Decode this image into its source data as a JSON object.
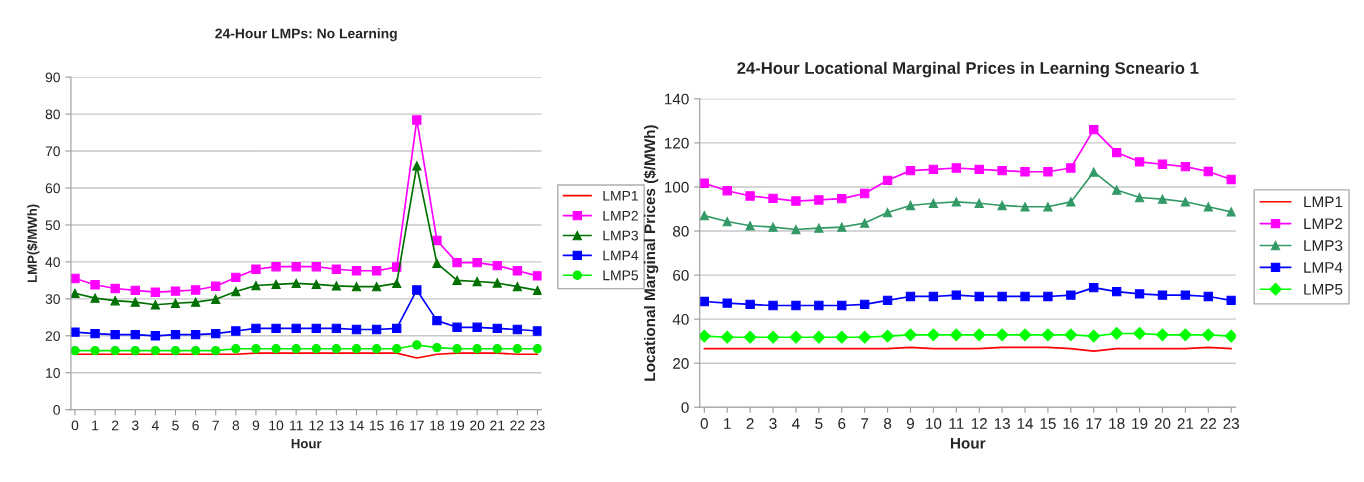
{
  "chart_data": [
    {
      "type": "line",
      "title": "24-Hour LMPs: No Learning",
      "xlabel": "Hour",
      "ylabel": "LMP($/MWh)",
      "categories": [
        "0",
        "1",
        "2",
        "3",
        "4",
        "5",
        "6",
        "7",
        "8",
        "9",
        "10",
        "11",
        "12",
        "13",
        "14",
        "15",
        "16",
        "17",
        "18",
        "19",
        "20",
        "21",
        "22",
        "23"
      ],
      "ylim": [
        0,
        90
      ],
      "yticks": [
        0,
        10,
        20,
        30,
        40,
        50,
        60,
        70,
        80,
        90
      ],
      "grid": "y",
      "legend": "right",
      "series": [
        {
          "name": "LMP1",
          "color": "#ff0000",
          "marker": "none",
          "values": [
            15,
            15,
            15,
            15,
            15,
            15,
            15,
            15,
            15,
            15.3,
            15.3,
            15.3,
            15.3,
            15.3,
            15.3,
            15.3,
            15.3,
            14,
            15,
            15.3,
            15.3,
            15.3,
            15,
            15
          ]
        },
        {
          "name": "LMP2",
          "color": "#ff00ff",
          "marker": "square",
          "values": [
            35.5,
            33.8,
            32.8,
            32.3,
            31.8,
            32.1,
            32.4,
            33.4,
            35.8,
            38,
            38.7,
            38.7,
            38.7,
            38,
            37.6,
            37.6,
            38.6,
            78.4,
            45.8,
            39.8,
            39.8,
            39,
            37.6,
            36.2
          ]
        },
        {
          "name": "LMP3",
          "color": "#007000",
          "marker": "triangle",
          "values": [
            31.5,
            30.2,
            29.5,
            29.1,
            28.4,
            28.8,
            29.1,
            29.9,
            32,
            33.6,
            33.9,
            34.2,
            33.9,
            33.5,
            33.3,
            33.3,
            34.2,
            66,
            39.6,
            35,
            34.7,
            34.3,
            33.3,
            32.3
          ]
        },
        {
          "name": "LMP4",
          "color": "#0000ff",
          "marker": "square",
          "values": [
            21,
            20.6,
            20.3,
            20.3,
            20,
            20.3,
            20.3,
            20.6,
            21.3,
            22,
            22,
            22,
            22,
            22,
            21.7,
            21.7,
            22,
            32.4,
            24.1,
            22.3,
            22.3,
            22,
            21.7,
            21.3
          ]
        },
        {
          "name": "LMP5",
          "color": "#00ee00",
          "marker": "circle",
          "values": [
            16,
            16,
            16,
            16,
            16,
            16,
            16,
            16,
            16.5,
            16.5,
            16.5,
            16.5,
            16.5,
            16.5,
            16.5,
            16.5,
            16.5,
            17.5,
            16.8,
            16.5,
            16.5,
            16.5,
            16.5,
            16.5
          ]
        }
      ]
    },
    {
      "type": "line",
      "title": "24-Hour Locational Marginal Prices in Learning Scneario 1",
      "xlabel": "Hour",
      "ylabel": "Locational Marginal Prices ($/MWh)",
      "categories": [
        "0",
        "1",
        "2",
        "3",
        "4",
        "5",
        "6",
        "7",
        "8",
        "9",
        "10",
        "11",
        "12",
        "13",
        "14",
        "15",
        "16",
        "17",
        "18",
        "19",
        "20",
        "21",
        "22",
        "23"
      ],
      "ylim": [
        0,
        140
      ],
      "yticks": [
        0,
        20,
        40,
        60,
        80,
        100,
        120,
        140
      ],
      "grid": "y",
      "legend": "right",
      "series": [
        {
          "name": "LMP1",
          "color": "#ff0000",
          "marker": "none",
          "values": [
            26.6,
            26.6,
            26.6,
            26.6,
            26.6,
            26.6,
            26.6,
            26.6,
            26.6,
            27.2,
            26.6,
            26.6,
            26.6,
            27.2,
            27.2,
            27.2,
            26.6,
            25.5,
            26.6,
            26.6,
            26.6,
            26.6,
            27.2,
            26.6
          ]
        },
        {
          "name": "LMP2",
          "color": "#ff00ff",
          "marker": "square",
          "values": [
            101.7,
            98.3,
            95.9,
            94.8,
            93.6,
            94.1,
            94.7,
            97,
            103,
            107.4,
            108,
            108.6,
            108,
            107.4,
            106.9,
            106.9,
            108.6,
            126,
            115.6,
            111.4,
            110.3,
            109.2,
            107,
            103.4
          ]
        },
        {
          "name": "LMP3",
          "color": "#339966",
          "marker": "triangle",
          "values": [
            87,
            84.3,
            82.4,
            81.8,
            80.7,
            81.3,
            81.8,
            83.6,
            88.4,
            91.6,
            92.6,
            93.2,
            92.6,
            91.6,
            91,
            91,
            93.2,
            106.8,
            98.6,
            95.2,
            94.5,
            93.3,
            91,
            88.7
          ]
        },
        {
          "name": "LMP4",
          "color": "#0000ff",
          "marker": "square",
          "values": [
            48,
            47.3,
            46.7,
            46.2,
            46.2,
            46.2,
            46.2,
            46.7,
            48.5,
            50.3,
            50.3,
            50.9,
            50.3,
            50.3,
            50.3,
            50.3,
            50.9,
            54.3,
            52.5,
            51.5,
            50.9,
            50.9,
            50.3,
            48.5
          ]
        },
        {
          "name": "LMP5",
          "color": "#00ff00",
          "marker": "diamond",
          "values": [
            32.3,
            31.8,
            31.8,
            31.8,
            31.8,
            31.8,
            31.8,
            31.8,
            32.3,
            32.9,
            32.9,
            32.9,
            32.9,
            32.9,
            32.9,
            32.9,
            32.9,
            32.3,
            33.5,
            33.5,
            32.9,
            32.9,
            32.9,
            32.3
          ]
        }
      ]
    }
  ]
}
